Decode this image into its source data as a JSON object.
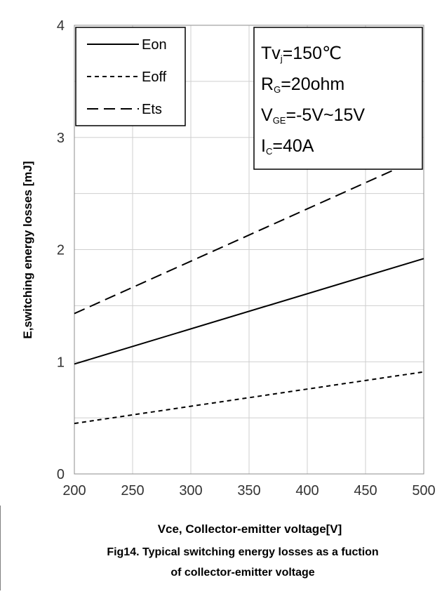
{
  "chart_data": {
    "type": "line",
    "xlabel": "Vce, Collector-emitter voltage[V]",
    "ylabel": "E,switching energy losses [mJ]",
    "caption_line1": "Fig14. Typical switching energy losses as a fuction",
    "caption_line2": "of collector-emitter voltage",
    "xlim": [
      200,
      500
    ],
    "ylim": [
      0,
      4
    ],
    "x_ticks": [
      "200",
      "250",
      "300",
      "350",
      "400",
      "450",
      "500"
    ],
    "y_ticks": [
      "0",
      "1",
      "2",
      "3",
      "4"
    ],
    "grid": true,
    "legend_position": "top-left",
    "series": [
      {
        "name": "Eon",
        "style": "solid",
        "x": [
          200,
          500
        ],
        "values": [
          0.98,
          1.92
        ]
      },
      {
        "name": "Eoff",
        "style": "dotted",
        "x": [
          200,
          500
        ],
        "values": [
          0.45,
          0.91
        ]
      },
      {
        "name": "Ets",
        "style": "dashed",
        "x": [
          200,
          500
        ],
        "values": [
          1.43,
          2.83
        ]
      }
    ],
    "conditions": [
      {
        "main": "Tv",
        "sub": "j",
        "rest": "=150℃"
      },
      {
        "main": "R",
        "sub": "G",
        "rest": "=20ohm"
      },
      {
        "main": "V",
        "sub": "GE",
        "rest": "=-5V~15V"
      },
      {
        "main": "I",
        "sub": "C",
        "rest": "=40A"
      }
    ]
  }
}
